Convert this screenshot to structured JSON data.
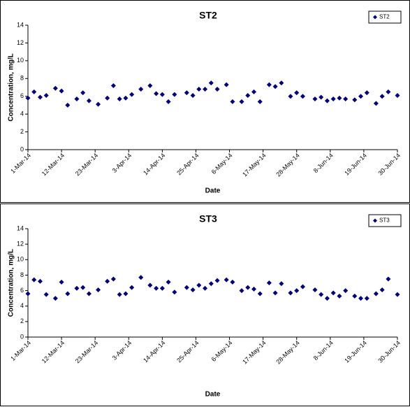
{
  "chart_data": [
    {
      "type": "scatter",
      "title": "ST2",
      "x_label": "Date",
      "y_label": "Concentration, mg/L",
      "x": [
        "2014-03-01",
        "2014-03-03",
        "2014-03-05",
        "2014-03-07",
        "2014-03-10",
        "2014-03-12",
        "2014-03-14",
        "2014-03-17",
        "2014-03-19",
        "2014-03-21",
        "2014-03-24",
        "2014-03-27",
        "2014-03-29",
        "2014-03-31",
        "2014-04-02",
        "2014-04-04",
        "2014-04-07",
        "2014-04-10",
        "2014-04-12",
        "2014-04-14",
        "2014-04-16",
        "2014-04-18",
        "2014-04-22",
        "2014-04-24",
        "2014-04-26",
        "2014-04-28",
        "2014-04-30",
        "2014-05-02",
        "2014-05-05",
        "2014-05-07",
        "2014-05-10",
        "2014-05-12",
        "2014-05-14",
        "2014-05-16",
        "2014-05-19",
        "2014-05-21",
        "2014-05-23",
        "2014-05-26",
        "2014-05-28",
        "2014-05-30",
        "2014-06-03",
        "2014-06-05",
        "2014-06-07",
        "2014-06-09",
        "2014-06-11",
        "2014-06-13",
        "2014-06-16",
        "2014-06-18",
        "2014-06-20",
        "2014-06-23",
        "2014-06-25",
        "2014-06-27",
        "2014-06-30"
      ],
      "series": [
        {
          "name": "ST2",
          "color": "#000080",
          "values": [
            5.8,
            6.5,
            5.9,
            6.1,
            6.9,
            6.6,
            5.0,
            5.7,
            6.4,
            5.5,
            5.1,
            5.8,
            7.2,
            5.7,
            5.8,
            6.2,
            6.8,
            7.2,
            6.3,
            6.2,
            5.4,
            6.2,
            6.4,
            6.1,
            6.8,
            6.8,
            7.5,
            6.8,
            7.3,
            5.4,
            5.4,
            6.1,
            6.5,
            5.4,
            7.3,
            7.1,
            7.5,
            6.0,
            6.4,
            6.0,
            5.7,
            5.9,
            5.5,
            5.7,
            5.8,
            5.7,
            5.6,
            6.0,
            6.4,
            5.2,
            6.0,
            6.5,
            6.1
          ]
        }
      ],
      "xlim": [
        "2014-03-01",
        "2014-06-30"
      ],
      "xticks": [
        {
          "value": "2014-03-01",
          "label": "1-Mar-14"
        },
        {
          "value": "2014-03-12",
          "label": "12-Mar-14"
        },
        {
          "value": "2014-03-23",
          "label": "23-Mar-14"
        },
        {
          "value": "2014-04-03",
          "label": "3-Apr-14"
        },
        {
          "value": "2014-04-14",
          "label": "14-Apr-14"
        },
        {
          "value": "2014-04-25",
          "label": "25-Apr-14"
        },
        {
          "value": "2014-05-06",
          "label": "6-May-14"
        },
        {
          "value": "2014-05-17",
          "label": "17-May-14"
        },
        {
          "value": "2014-05-28",
          "label": "28-May-14"
        },
        {
          "value": "2014-06-08",
          "label": "8-Jun-14"
        },
        {
          "value": "2014-06-19",
          "label": "19-Jun-14"
        },
        {
          "value": "2014-06-30",
          "label": "30-Jun-14"
        }
      ],
      "ylim": [
        0,
        14
      ],
      "yticks": [
        0,
        2,
        4,
        6,
        8,
        10,
        12,
        14
      ],
      "grid": false,
      "legend": "top-right"
    },
    {
      "type": "scatter",
      "title": "ST3",
      "x_label": "Date",
      "y_label": "Concentration, mg/L",
      "x": [
        "2014-03-01",
        "2014-03-03",
        "2014-03-05",
        "2014-03-07",
        "2014-03-10",
        "2014-03-12",
        "2014-03-14",
        "2014-03-17",
        "2014-03-19",
        "2014-03-21",
        "2014-03-24",
        "2014-03-27",
        "2014-03-29",
        "2014-03-31",
        "2014-04-02",
        "2014-04-04",
        "2014-04-07",
        "2014-04-10",
        "2014-04-12",
        "2014-04-14",
        "2014-04-16",
        "2014-04-18",
        "2014-04-22",
        "2014-04-24",
        "2014-04-26",
        "2014-04-28",
        "2014-04-30",
        "2014-05-02",
        "2014-05-05",
        "2014-05-07",
        "2014-05-10",
        "2014-05-12",
        "2014-05-14",
        "2014-05-16",
        "2014-05-19",
        "2014-05-21",
        "2014-05-23",
        "2014-05-26",
        "2014-05-28",
        "2014-05-30",
        "2014-06-03",
        "2014-06-05",
        "2014-06-07",
        "2014-06-09",
        "2014-06-11",
        "2014-06-13",
        "2014-06-16",
        "2014-06-18",
        "2014-06-20",
        "2014-06-23",
        "2014-06-25",
        "2014-06-27",
        "2014-06-30"
      ],
      "series": [
        {
          "name": "ST3",
          "color": "#000080",
          "values": [
            5.6,
            7.4,
            7.2,
            5.5,
            5.0,
            7.1,
            5.6,
            6.3,
            6.4,
            5.6,
            6.1,
            7.2,
            7.5,
            5.5,
            5.6,
            6.4,
            7.7,
            6.7,
            6.3,
            6.3,
            7.1,
            5.8,
            6.4,
            6.1,
            6.7,
            6.3,
            6.9,
            7.3,
            7.4,
            7.1,
            6.0,
            6.4,
            6.2,
            5.6,
            7.0,
            5.7,
            6.9,
            5.7,
            6.0,
            6.5,
            6.1,
            5.5,
            5.0,
            5.7,
            5.3,
            6.0,
            5.3,
            5.0,
            5.0,
            5.6,
            6.1,
            7.5,
            5.5
          ]
        }
      ],
      "xlim": [
        "2014-03-01",
        "2014-06-30"
      ],
      "xticks": [
        {
          "value": "2014-03-01",
          "label": "1-Mar-14"
        },
        {
          "value": "2014-03-12",
          "label": "12-Mar-14"
        },
        {
          "value": "2014-03-23",
          "label": "23-Mar-14"
        },
        {
          "value": "2014-04-03",
          "label": "3-Apr-14"
        },
        {
          "value": "2014-04-14",
          "label": "14-Apr-14"
        },
        {
          "value": "2014-04-25",
          "label": "25-Apr-14"
        },
        {
          "value": "2014-05-06",
          "label": "6-May-14"
        },
        {
          "value": "2014-05-17",
          "label": "17-May-14"
        },
        {
          "value": "2014-05-28",
          "label": "28-May-14"
        },
        {
          "value": "2014-06-08",
          "label": "8-Jun-14"
        },
        {
          "value": "2014-06-19",
          "label": "19-Jun-14"
        },
        {
          "value": "2014-06-30",
          "label": "30-Jun-14"
        }
      ],
      "ylim": [
        0,
        14
      ],
      "yticks": [
        0,
        2,
        4,
        6,
        8,
        10,
        12,
        14
      ],
      "grid": false,
      "legend": "top-right"
    }
  ]
}
